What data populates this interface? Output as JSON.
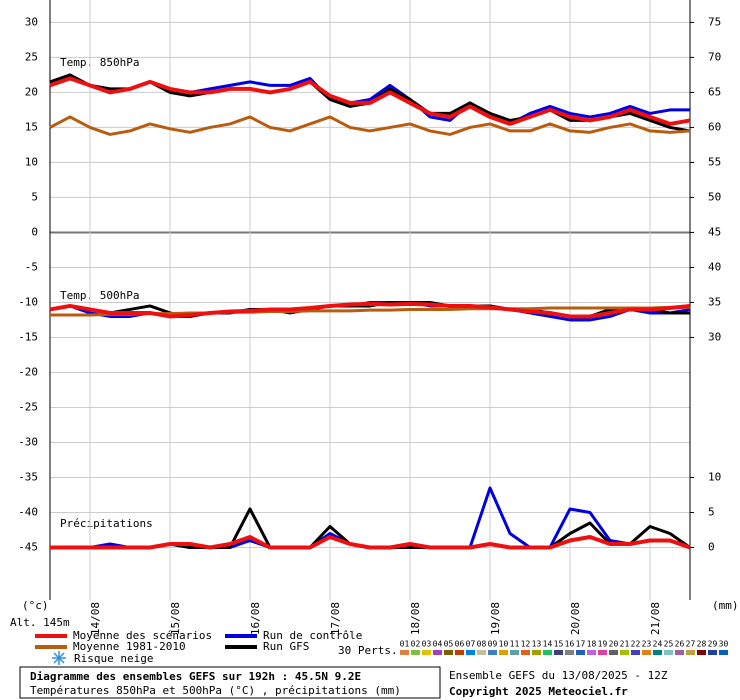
{
  "chart_data": {
    "type": "line",
    "panel_labels": [
      "Temp. 850hPa",
      "Temp. 500hPa",
      "Précipitations"
    ],
    "y_unit": "(°c)",
    "y2_unit": "(mm)",
    "altitude": "Alt. 145m",
    "ylim": [
      -52.5,
      33.2
    ],
    "yticks": [
      30,
      25,
      20,
      15,
      10,
      5,
      0,
      -5,
      -10,
      -15,
      -20,
      -25,
      -30,
      -35,
      -40,
      -45
    ],
    "y2lim": [
      -7.5,
      78.2
    ],
    "y2ticks": [
      75,
      70,
      65,
      60,
      55,
      50,
      45,
      40,
      35,
      30,
      10,
      5,
      0
    ],
    "xlim": [
      0,
      32
    ],
    "xticks": [
      {
        "value": 2,
        "label": "14/08"
      },
      {
        "value": 6,
        "label": "15/08"
      },
      {
        "value": 10,
        "label": "16/08"
      },
      {
        "value": 14,
        "label": "17/08"
      },
      {
        "value": 18,
        "label": "18/08"
      },
      {
        "value": 22,
        "label": "19/08"
      },
      {
        "value": 26,
        "label": "20/08"
      },
      {
        "value": 30,
        "label": "21/08"
      }
    ],
    "grid": true,
    "series": [
      {
        "name": "Run de contrôle",
        "color": "#0000e0",
        "width": 3,
        "temp850": [
          21,
          22,
          21,
          20,
          20.5,
          21.5,
          20.5,
          20,
          20.5,
          21,
          21.5,
          21,
          21,
          22,
          19,
          18.5,
          19,
          21,
          19,
          16.5,
          16,
          18.5,
          16.5,
          15.5,
          17,
          18,
          17,
          16.5,
          17,
          18,
          17,
          17.5,
          17.5
        ],
        "temp500": [
          -11,
          -10.5,
          -11.5,
          -12,
          -12,
          -11.5,
          -12,
          -12,
          -11.5,
          -11.5,
          -11,
          -11,
          -11,
          -11,
          -10.5,
          -10.5,
          -10,
          -10,
          -10,
          -10.5,
          -10.5,
          -10.5,
          -10.5,
          -11,
          -11.5,
          -12,
          -12.5,
          -12.5,
          -12,
          -11,
          -11.5,
          -11.5,
          -11
        ],
        "precip": [
          0,
          0,
          0,
          0.5,
          0,
          0,
          0.5,
          0,
          0,
          0,
          1,
          0,
          0,
          0,
          2,
          0.5,
          0,
          0,
          0.5,
          0,
          0,
          0,
          8.5,
          2,
          0,
          0,
          5.5,
          5,
          1,
          0.5,
          1,
          1,
          0
        ]
      },
      {
        "name": "Run GFS",
        "color": "#000000",
        "width": 3,
        "temp850": [
          21.5,
          22.5,
          21,
          20.5,
          20.5,
          21.5,
          20,
          19.5,
          20,
          20.5,
          20.5,
          20,
          20.5,
          21.5,
          19,
          18,
          18.5,
          20.5,
          19,
          17,
          17,
          18.5,
          17,
          16,
          16.5,
          17.5,
          16,
          16,
          16.5,
          17,
          16,
          15,
          14.5
        ],
        "temp500": [
          -11,
          -10.5,
          -11,
          -11.5,
          -11,
          -10.5,
          -11.5,
          -12,
          -11.5,
          -11.5,
          -11,
          -11,
          -11.5,
          -11,
          -10.5,
          -10.5,
          -10.5,
          -10,
          -10,
          -10,
          -10.5,
          -10.5,
          -10.5,
          -11,
          -11,
          -11.5,
          -12,
          -12,
          -11,
          -11,
          -11,
          -11.5,
          -11.5
        ],
        "precip": [
          0,
          0,
          0,
          0,
          0,
          0,
          0.5,
          0,
          0,
          0,
          5.5,
          0,
          0,
          0,
          3,
          0.5,
          0,
          0,
          0,
          0,
          0,
          0,
          0.5,
          0,
          0,
          0,
          2,
          3.5,
          0.5,
          0.5,
          3,
          2,
          0
        ]
      },
      {
        "name": "Moyenne 1981-2010",
        "color": "#b85c10",
        "width": 3,
        "temp850": [
          15,
          16.5,
          15,
          14,
          14.5,
          15.5,
          14.8,
          14.3,
          15,
          15.5,
          16.5,
          15,
          14.5,
          15.5,
          16.5,
          15,
          14.5,
          15,
          15.5,
          14.5,
          14,
          15,
          15.5,
          14.5,
          14.5,
          15.5,
          14.5,
          14.3,
          15,
          15.5,
          14.5,
          14.3,
          14.5
        ],
        "temp500": [
          -11.8,
          -11.8,
          -11.8,
          -11.7,
          -11.7,
          -11.6,
          -11.6,
          -11.5,
          -11.5,
          -11.4,
          -11.4,
          -11.3,
          -11.3,
          -11.2,
          -11.2,
          -11.2,
          -11.1,
          -11.1,
          -11,
          -11,
          -11,
          -10.9,
          -10.9,
          -10.9,
          -10.9,
          -10.8,
          -10.8,
          -10.8,
          -10.8,
          -10.8,
          -10.8,
          -10.7,
          -10.7
        ]
      },
      {
        "name": "Moyenne des scénarios",
        "color": "#ee1010",
        "width": 4,
        "temp850": [
          21,
          22,
          21,
          20,
          20.5,
          21.5,
          20.5,
          20,
          20,
          20.5,
          20.5,
          20,
          20.5,
          21.5,
          19.5,
          18.5,
          18.5,
          20,
          18.5,
          17,
          16.5,
          18,
          16.5,
          15.5,
          16.5,
          17.5,
          16.5,
          16,
          16.5,
          17.5,
          16.5,
          15.5,
          16
        ],
        "temp500": [
          -11,
          -10.5,
          -11,
          -11.5,
          -11.5,
          -11.5,
          -12,
          -11.8,
          -11.5,
          -11.3,
          -11.2,
          -11,
          -11,
          -10.8,
          -10.5,
          -10.3,
          -10.2,
          -10.3,
          -10.2,
          -10.3,
          -10.5,
          -10.5,
          -10.7,
          -11,
          -11.3,
          -11.5,
          -12,
          -12,
          -11.5,
          -11,
          -11,
          -10.8,
          -10.5
        ],
        "precip": [
          0,
          0,
          0,
          0,
          0,
          0,
          0.5,
          0.5,
          0,
          0.5,
          1.5,
          0,
          0,
          0,
          1.5,
          0.5,
          0,
          0,
          0.5,
          0,
          0,
          0,
          0.5,
          0,
          0,
          0,
          1,
          1.5,
          0.5,
          0.5,
          1,
          1,
          0
        ]
      }
    ],
    "snow_label": "Risque neige",
    "perturbations": {
      "label": "30 Perts.",
      "members": [
        {
          "label": "01",
          "color": "#e08040"
        },
        {
          "label": "02",
          "color": "#80c040"
        },
        {
          "label": "03",
          "color": "#e0c000"
        },
        {
          "label": "04",
          "color": "#a040c0"
        },
        {
          "label": "05",
          "color": "#806000"
        },
        {
          "label": "06",
          "color": "#c04000"
        },
        {
          "label": "07",
          "color": "#0080e0"
        },
        {
          "label": "08",
          "color": "#c0c0a0"
        },
        {
          "label": "09",
          "color": "#4080c0"
        },
        {
          "label": "10",
          "color": "#e0a000"
        },
        {
          "label": "11",
          "color": "#60a0a0"
        },
        {
          "label": "12",
          "color": "#e06020"
        },
        {
          "label": "13",
          "color": "#a0a000"
        },
        {
          "label": "14",
          "color": "#20c060"
        },
        {
          "label": "15",
          "color": "#404080"
        },
        {
          "label": "16",
          "color": "#808080"
        },
        {
          "label": "17",
          "color": "#2060c0"
        },
        {
          "label": "18",
          "color": "#c060e0"
        },
        {
          "label": "19",
          "color": "#e040a0"
        },
        {
          "label": "20",
          "color": "#606060"
        },
        {
          "label": "21",
          "color": "#a0c000"
        },
        {
          "label": "22",
          "color": "#4040c0"
        },
        {
          "label": "23",
          "color": "#e08020"
        },
        {
          "label": "24",
          "color": "#008080"
        },
        {
          "label": "25",
          "color": "#80c0c0"
        },
        {
          "label": "26",
          "color": "#a060a0"
        },
        {
          "label": "27",
          "color": "#c0a040"
        },
        {
          "label": "28",
          "color": "#800000"
        },
        {
          "label": "29",
          "color": "#2040a0"
        },
        {
          "label": "30",
          "color": "#0060c0"
        }
      ]
    },
    "footer": {
      "title": "Diagramme des ensembles GEFS sur 192h : 45.5N 9.2E",
      "subtitle": "Températures 850hPa et 500hPa (°C) , précipitations (mm)",
      "run": "Ensemble GEFS du 13/08/2025 - 12Z",
      "copyright": "Copyright 2025 Meteociel.fr"
    }
  }
}
